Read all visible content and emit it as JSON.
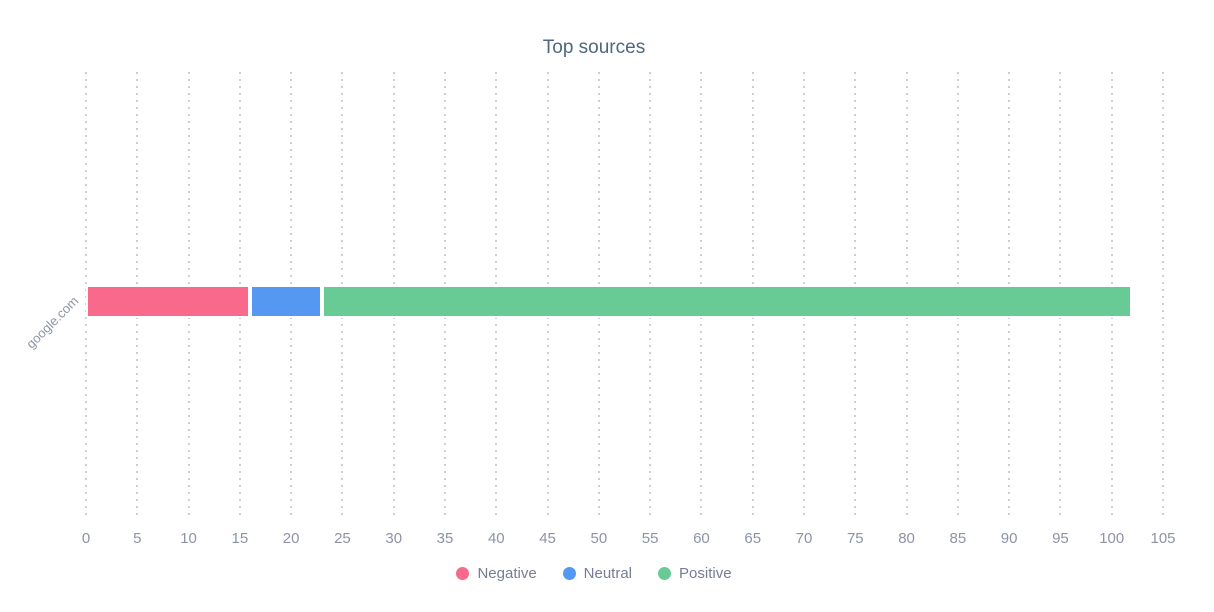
{
  "chart_data": {
    "type": "bar",
    "orientation": "horizontal",
    "stacked": true,
    "title": "Top sources",
    "categories": [
      "google.com"
    ],
    "series": [
      {
        "name": "Negative",
        "color": "#f9698c",
        "values": [
          16
        ]
      },
      {
        "name": "Neutral",
        "color": "#5598f2",
        "values": [
          7
        ]
      },
      {
        "name": "Positive",
        "color": "#68cb95",
        "values": [
          79
        ]
      }
    ],
    "totals": [
      102
    ],
    "xlabel": "",
    "ylabel": "",
    "xlim": [
      0,
      105
    ],
    "xticks": [
      0,
      5,
      10,
      15,
      20,
      25,
      30,
      35,
      40,
      45,
      50,
      55,
      60,
      65,
      70,
      75,
      80,
      85,
      90,
      95,
      100,
      105
    ],
    "grid": {
      "axis": "x",
      "style": "dotted"
    },
    "legend_position": "bottom",
    "legend": [
      "Negative",
      "Neutral",
      "Positive"
    ]
  },
  "style": {
    "title_color": "#4d687f",
    "tick_color": "#8d93a7",
    "legend_text_color": "#757d97",
    "grid_dot_color": "#cccfd6",
    "segment_border_color": "#ffffff",
    "background_color": "#ffffff"
  }
}
